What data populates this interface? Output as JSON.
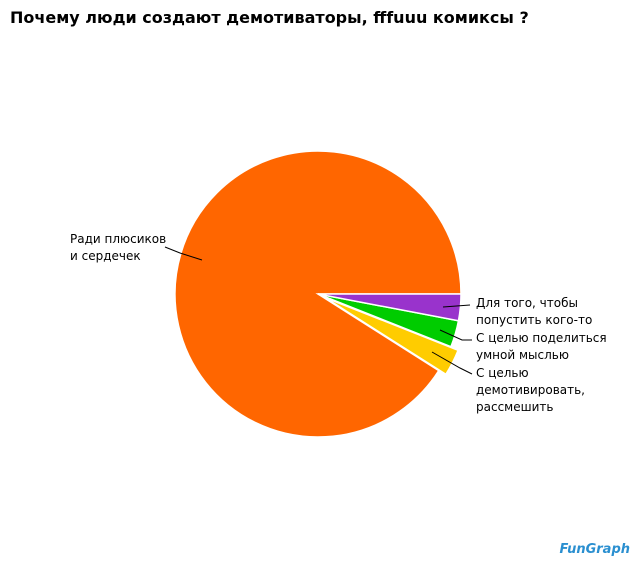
{
  "chart_data": {
    "type": "pie",
    "title": "Почему люди создают демотиваторы, fffuuu комиксы ?",
    "categories": [
      "Для того, чтобы\n попустить кого-то",
      "С целью поделиться\nумной мыслью",
      "С целью демотивировать,\nрассмешить",
      "Ради плюсиков\nи сердечек"
    ],
    "values": [
      3,
      3,
      3,
      91
    ],
    "colors": [
      "#9933cc",
      "#00cc00",
      "#ffcc00",
      "#ff6600"
    ],
    "exploded": [
      false,
      false,
      true,
      false
    ],
    "logo": "FunGraph"
  }
}
